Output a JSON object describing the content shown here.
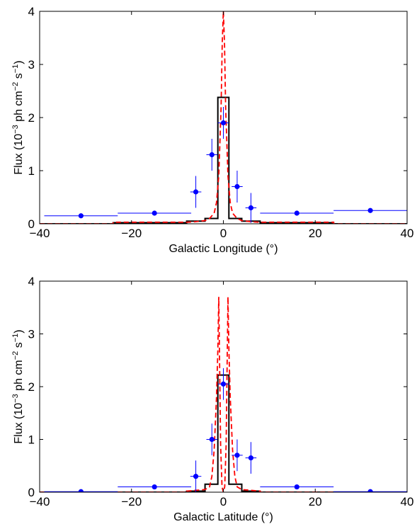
{
  "chart_data": [
    {
      "type": "line",
      "xlabel": "Galactic Longitude (°)",
      "ylabel": "Flux (10^-3 ph cm^-2 s^-1)",
      "ylabel_parts": {
        "pre": "Flux (10",
        "e1": "−3",
        "mid": " ph cm",
        "e2": "−2",
        "mid2": " s",
        "e3": "−1",
        "post": ")"
      },
      "xlim": [
        -40,
        40
      ],
      "ylim": [
        0,
        4
      ],
      "xticks": [
        -40,
        -20,
        0,
        20,
        40
      ],
      "yticks": [
        0,
        1,
        2,
        3,
        4
      ],
      "xtick_labels": [
        "−40",
        "−20",
        "0",
        "20",
        "40"
      ],
      "ytick_labels": [
        "0",
        "1",
        "2",
        "3",
        "4"
      ],
      "grid": false,
      "series": [
        {
          "kind": "errorbar",
          "color": "#0000ff",
          "points": [
            {
              "x": -31,
              "y": 0.15,
              "xerr": 8,
              "yerr": 0.04
            },
            {
              "x": -15,
              "y": 0.2,
              "xerr": 8,
              "yerr": 0.04
            },
            {
              "x": -6,
              "y": 0.6,
              "xerr": 1.2,
              "yerr": 0.3
            },
            {
              "x": -2.5,
              "y": 1.3,
              "xerr": 1.2,
              "yerr": 0.3
            },
            {
              "x": 0,
              "y": 1.9,
              "xerr": 1.2,
              "yerr": 0.3
            },
            {
              "x": 3,
              "y": 0.7,
              "xerr": 1.2,
              "yerr": 0.3
            },
            {
              "x": 6,
              "y": 0.3,
              "xerr": 1.2,
              "yerr": 0.28
            },
            {
              "x": 16,
              "y": 0.2,
              "xerr": 8,
              "yerr": 0.04
            },
            {
              "x": 32,
              "y": 0.25,
              "xerr": 8,
              "yerr": 0.04
            }
          ]
        },
        {
          "kind": "step",
          "color": "#000000",
          "points": [
            [
              -40,
              0
            ],
            [
              -24,
              0
            ],
            [
              -24,
              0.02
            ],
            [
              -8,
              0.02
            ],
            [
              -8,
              0.05
            ],
            [
              -4,
              0.05
            ],
            [
              -4,
              0.1
            ],
            [
              -1.2,
              0.1
            ],
            [
              -1.2,
              2.38
            ],
            [
              1.2,
              2.38
            ],
            [
              1.2,
              0.1
            ],
            [
              4,
              0.1
            ],
            [
              4,
              0.05
            ],
            [
              8,
              0.05
            ],
            [
              8,
              0.02
            ],
            [
              24,
              0.02
            ],
            [
              24,
              0
            ],
            [
              40,
              0
            ]
          ]
        },
        {
          "kind": "dashed",
          "color": "#ff0000",
          "points": [
            [
              -40,
              0
            ],
            [
              -24,
              0
            ],
            [
              -24,
              0.03
            ],
            [
              -8,
              0.03
            ],
            [
              -6,
              0.04
            ],
            [
              -4,
              0.06
            ],
            [
              -3,
              0.1
            ],
            [
              -2,
              0.2
            ],
            [
              -1.5,
              0.4
            ],
            [
              -1,
              0.9
            ],
            [
              -0.5,
              2.2
            ],
            [
              -0.25,
              3.4
            ],
            [
              0,
              4.0
            ],
            [
              0.25,
              3.4
            ],
            [
              0.5,
              2.2
            ],
            [
              1,
              0.9
            ],
            [
              1.5,
              0.4
            ],
            [
              2,
              0.2
            ],
            [
              3,
              0.1
            ],
            [
              4,
              0.06
            ],
            [
              6,
              0.04
            ],
            [
              8,
              0.03
            ],
            [
              24,
              0.03
            ],
            [
              24,
              0
            ],
            [
              40,
              0
            ]
          ]
        }
      ]
    },
    {
      "type": "line",
      "xlabel": "Galactic Latitude (°)",
      "ylabel": "Flux (10^-3 ph cm^-2 s^-1)",
      "ylabel_parts": {
        "pre": "Flux (10",
        "e1": "−3",
        "mid": " ph cm",
        "e2": "−2",
        "mid2": " s",
        "e3": "−1",
        "post": ")"
      },
      "xlim": [
        -40,
        40
      ],
      "ylim": [
        0,
        4
      ],
      "xticks": [
        -40,
        -20,
        0,
        20,
        40
      ],
      "yticks": [
        0,
        1,
        2,
        3,
        4
      ],
      "xtick_labels": [
        "−40",
        "−20",
        "0",
        "20",
        "40"
      ],
      "ytick_labels": [
        "0",
        "1",
        "2",
        "3",
        "4"
      ],
      "grid": false,
      "series": [
        {
          "kind": "errorbar",
          "color": "#0000ff",
          "points": [
            {
              "x": -31,
              "y": 0.01,
              "xerr": 8,
              "yerr": 0.02
            },
            {
              "x": -15,
              "y": 0.1,
              "xerr": 8,
              "yerr": 0.03
            },
            {
              "x": -6,
              "y": 0.3,
              "xerr": 1.2,
              "yerr": 0.3
            },
            {
              "x": -2.5,
              "y": 1.0,
              "xerr": 1.2,
              "yerr": 0.3
            },
            {
              "x": 0,
              "y": 2.05,
              "xerr": 1.2,
              "yerr": 0.3
            },
            {
              "x": 3,
              "y": 0.7,
              "xerr": 1.2,
              "yerr": 0.3
            },
            {
              "x": 6,
              "y": 0.65,
              "xerr": 1.2,
              "yerr": 0.3
            },
            {
              "x": 16,
              "y": 0.1,
              "xerr": 8,
              "yerr": 0.03
            },
            {
              "x": 32,
              "y": 0.01,
              "xerr": 8,
              "yerr": 0.02
            }
          ]
        },
        {
          "kind": "step",
          "color": "#000000",
          "points": [
            [
              -40,
              0
            ],
            [
              -8,
              0
            ],
            [
              -8,
              0.02
            ],
            [
              -4,
              0.02
            ],
            [
              -4,
              0.15
            ],
            [
              -1.2,
              0.15
            ],
            [
              -1.2,
              2.22
            ],
            [
              1.2,
              2.22
            ],
            [
              1.2,
              0.15
            ],
            [
              4,
              0.15
            ],
            [
              4,
              0.02
            ],
            [
              8,
              0.02
            ],
            [
              8,
              0
            ],
            [
              40,
              0
            ]
          ]
        },
        {
          "kind": "dashed",
          "color": "#ff0000",
          "points": [
            [
              -40,
              0
            ],
            [
              -8,
              0
            ],
            [
              -8,
              0.02
            ],
            [
              -4,
              0.05
            ],
            [
              -3,
              0.1
            ],
            [
              -2.5,
              0.3
            ],
            [
              -2,
              0.8
            ],
            [
              -1.5,
              1.8
            ],
            [
              -1.2,
              2.7
            ],
            [
              -1.0,
              3.7
            ],
            [
              -0.6,
              0.9
            ],
            [
              -0.3,
              0.1
            ],
            [
              0,
              0.0
            ],
            [
              0.3,
              0.1
            ],
            [
              0.6,
              0.9
            ],
            [
              1.0,
              3.7
            ],
            [
              1.2,
              2.7
            ],
            [
              1.5,
              1.8
            ],
            [
              2,
              0.8
            ],
            [
              2.5,
              0.3
            ],
            [
              3,
              0.1
            ],
            [
              4,
              0.05
            ],
            [
              8,
              0.02
            ],
            [
              8,
              0
            ],
            [
              40,
              0
            ]
          ]
        }
      ]
    }
  ]
}
